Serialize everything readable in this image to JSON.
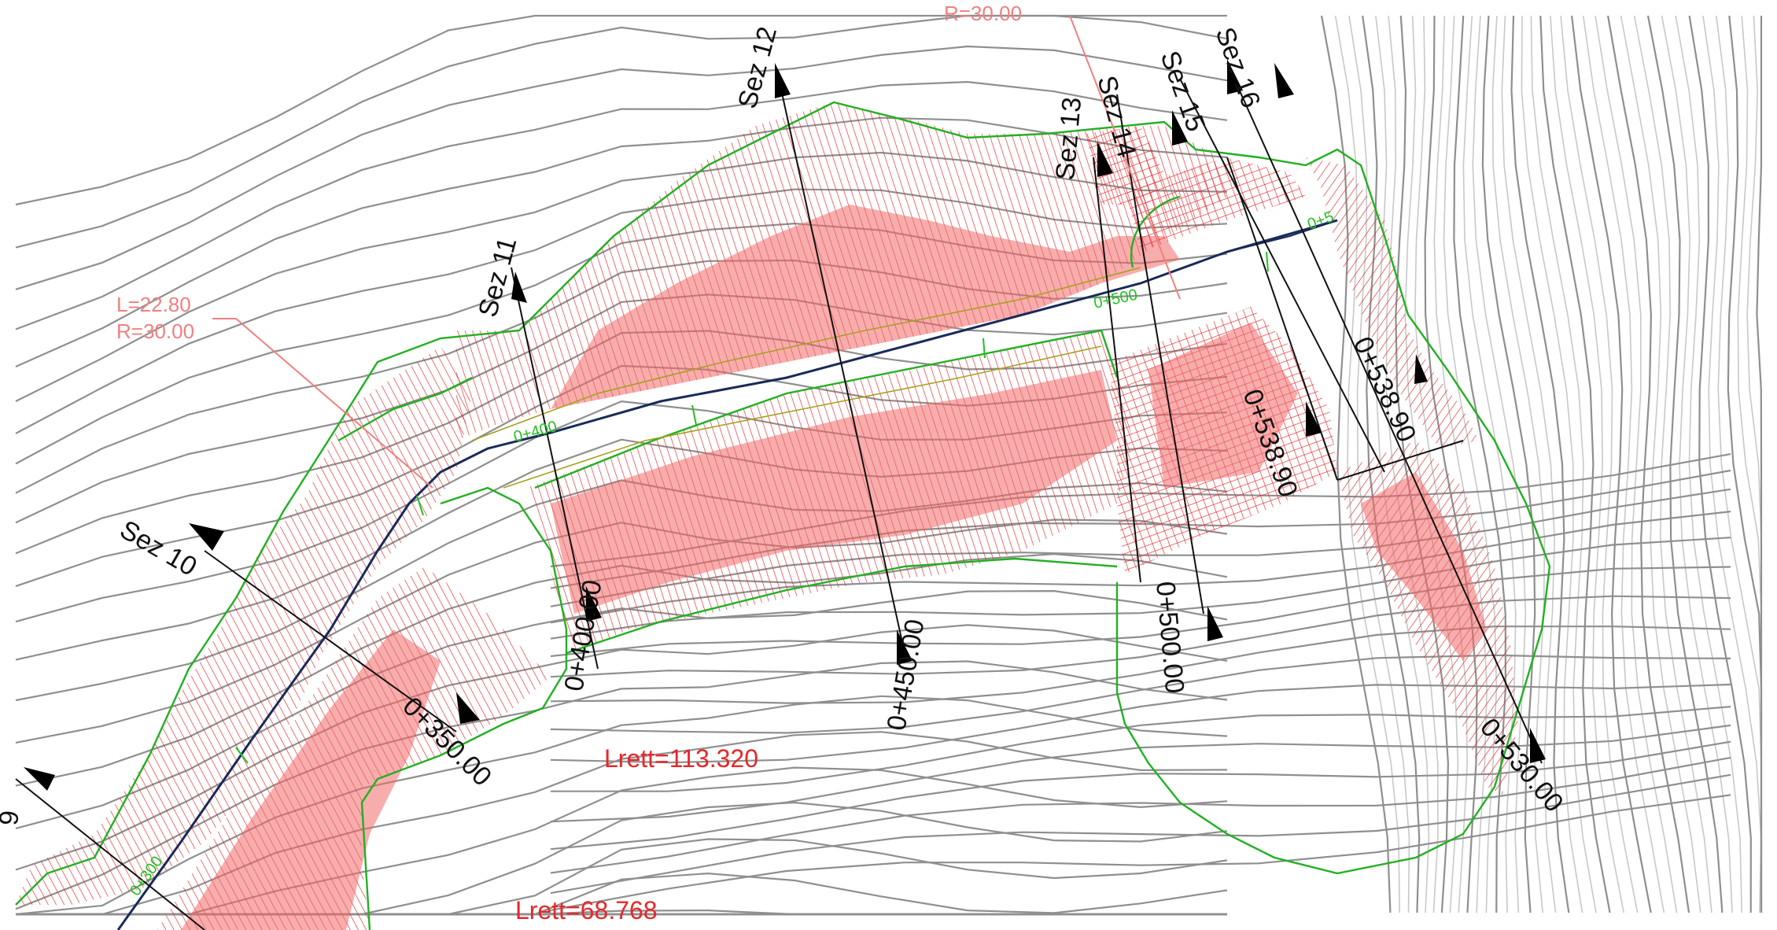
{
  "sections": [
    {
      "label": "9"
    },
    {
      "label": "Sez 10"
    },
    {
      "label": "Sez 11"
    },
    {
      "label": "Sez 12"
    },
    {
      "label": "Sez 13"
    },
    {
      "label": "Sez 14"
    },
    {
      "label": "Sez 15"
    },
    {
      "label": "Sez 16"
    }
  ],
  "chainages": [
    {
      "label": "0+350.00"
    },
    {
      "label": "0+400.00"
    },
    {
      "label": "0+450.00"
    },
    {
      "label": "0+500.00"
    },
    {
      "label": "0+538.90"
    },
    {
      "label": "0+538.90"
    },
    {
      "label": "0+530.00"
    }
  ],
  "axis_marks": [
    {
      "label": "0+300"
    },
    {
      "label": "0+400"
    },
    {
      "label": "0+500"
    },
    {
      "label": "0+5"
    }
  ],
  "straight_lengths": [
    {
      "label": "Lrett=113.320"
    },
    {
      "label": "Lrett=68.768"
    }
  ],
  "curve": {
    "length_label": "L=22.80",
    "radius_label": "R=30.00",
    "top_label": "R=30.00"
  },
  "colors": {
    "contour": "#8f8f8f",
    "hatch": "#e3262a",
    "boundary": "#22b022",
    "axis": "#1a2a5a",
    "annotation": "#e8262a"
  }
}
